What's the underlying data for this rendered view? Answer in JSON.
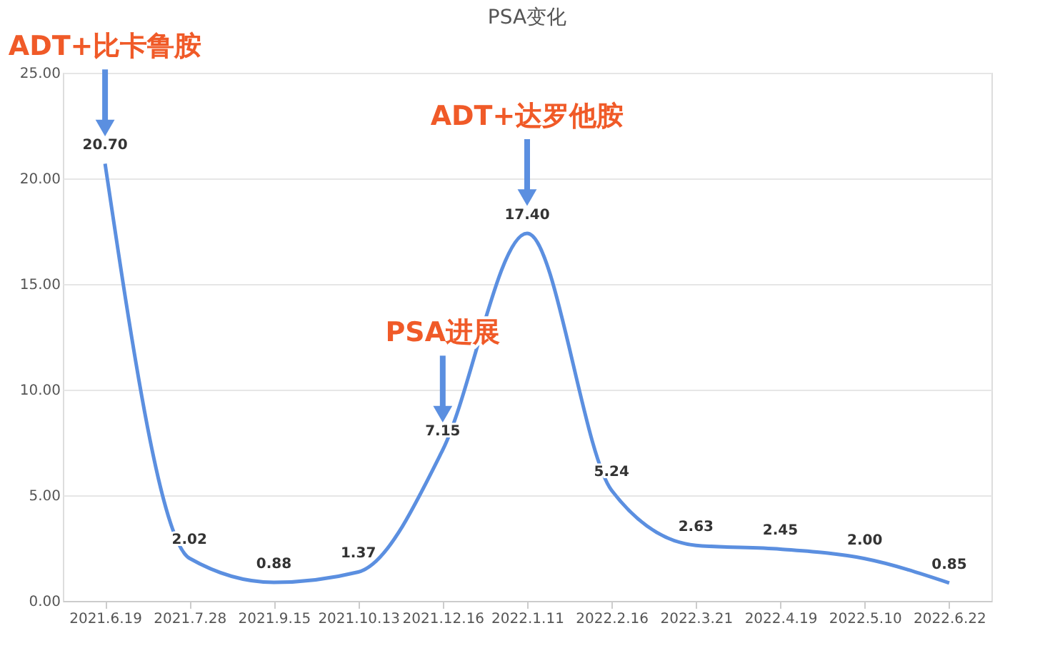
{
  "chart_data": {
    "type": "line",
    "title": "PSA变化",
    "categories": [
      "2021.6.19",
      "2021.7.28",
      "2021.9.15",
      "2021.10.13",
      "2021.12.16",
      "2022.1.11",
      "2022.2.16",
      "2022.3.21",
      "2022.4.19",
      "2022.5.10",
      "2022.6.22"
    ],
    "series": [
      {
        "color": "#5b8fe0",
        "values": [
          20.7,
          2.02,
          0.88,
          1.37,
          7.15,
          17.4,
          5.24,
          2.63,
          2.45,
          2.0,
          0.85
        ]
      }
    ],
    "ylim": [
      0,
      25
    ],
    "yticks": [
      {
        "value": 0,
        "label": "0.00"
      },
      {
        "value": 5,
        "label": "5.00"
      },
      {
        "value": 10,
        "label": "10.00"
      },
      {
        "value": 15,
        "label": "15.00"
      },
      {
        "value": 20,
        "label": "20.00"
      },
      {
        "value": 25,
        "label": "25.00"
      }
    ],
    "value_labels": [
      "20.70",
      "2.02",
      "0.88",
      "1.37",
      "7.15",
      "17.40",
      "5.24",
      "2.63",
      "2.45",
      "2.00",
      "0.85"
    ],
    "grid": "y",
    "marker": "none",
    "line_style": "solid",
    "annotations": [
      "ADT+比卡鲁胺",
      "PSA进展",
      "ADT+达罗他胺"
    ]
  }
}
